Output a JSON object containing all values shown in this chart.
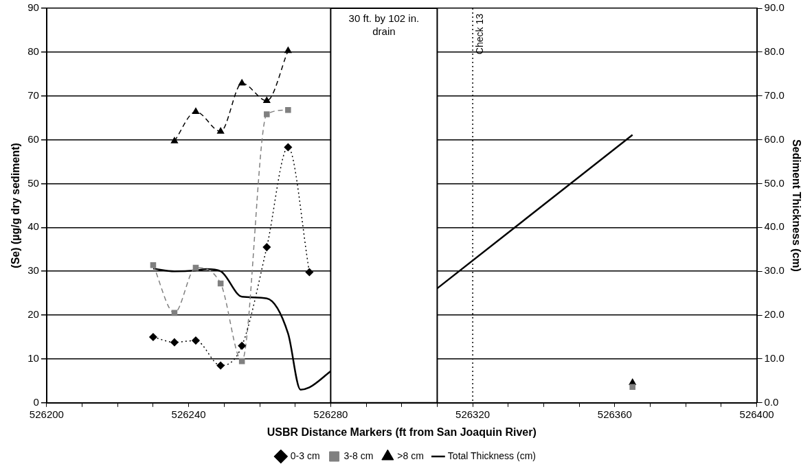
{
  "chart_data": {
    "type": "line",
    "xlabel": "USBR Distance Markers (ft from San Joaquin River)",
    "ylabel": "(Se) (µg/g dry sediment)",
    "y2label": "Sediment Thickness (cm)",
    "xlim": [
      526200,
      526400
    ],
    "xticks": [
      526200,
      {
        "value": 526210,
        "label": null
      },
      {
        "value": 526220,
        "label": null
      },
      {
        "value": 526230,
        "label": null
      },
      526240,
      {
        "value": 526250,
        "label": null
      },
      {
        "value": 526260,
        "label": null
      },
      {
        "value": 526270,
        "label": null
      },
      526280,
      {
        "value": 526290,
        "label": null
      },
      {
        "value": 526300,
        "label": null
      },
      {
        "value": 526310,
        "label": null
      },
      526320,
      {
        "value": 526330,
        "label": null
      },
      {
        "value": 526340,
        "label": null
      },
      {
        "value": 526350,
        "label": null
      },
      526360,
      {
        "value": 526370,
        "label": null
      },
      {
        "value": 526380,
        "label": null
      },
      {
        "value": 526390,
        "label": null
      },
      526400
    ],
    "ylim": [
      0,
      90
    ],
    "yticks": [
      0,
      10,
      20,
      30,
      40,
      50,
      60,
      70,
      80,
      90
    ],
    "y2lim": [
      0,
      90
    ],
    "y2ticks": [
      {
        "value": 0,
        "label": "0.0"
      },
      {
        "value": 10,
        "label": "10.0"
      },
      {
        "value": 20,
        "label": "20.0"
      },
      {
        "value": 30,
        "label": "30.0"
      },
      {
        "value": 40,
        "label": "40.0"
      },
      {
        "value": 50,
        "label": "50.0"
      },
      {
        "value": 60,
        "label": "60.0"
      },
      {
        "value": 70,
        "label": "70.0"
      },
      {
        "value": 80,
        "label": "80.0"
      },
      {
        "value": 90,
        "label": "90.0"
      }
    ],
    "grid": "y",
    "legend": "bottom",
    "series": [
      {
        "name": "0-3 cm",
        "color": "#000000",
        "marker": "diamond",
        "line_style": "dotted",
        "x": [
          526230,
          526236,
          526242,
          526249,
          526255,
          526262,
          526268,
          526274
        ],
        "values": [
          15.0,
          13.8,
          14.2,
          8.5,
          13.0,
          35.5,
          58.3,
          29.8
        ]
      },
      {
        "name": "3-8 cm",
        "color": "#808080",
        "marker": "square",
        "line_style": "dashed",
        "x": [
          526230,
          526236,
          526242,
          526249,
          526255,
          526262,
          526268,
          526300,
          526365
        ],
        "values": [
          31.4,
          20.5,
          30.8,
          27.2,
          9.5,
          65.8,
          66.8,
          null,
          3.6
        ]
      },
      {
        "name": ">8 cm",
        "color": "#000000",
        "marker": "triangle",
        "line_style": "dashed",
        "x": [
          526236,
          526242,
          526249,
          526255,
          526262,
          526268,
          526300,
          526365
        ],
        "values": [
          59.7,
          66.4,
          61.9,
          72.9,
          68.9,
          80.3,
          null,
          4.6
        ]
      },
      {
        "name": "Total Thickness (cm)",
        "color": "#000000",
        "marker": "none",
        "line_style": "solid",
        "axis": "y2",
        "x": [
          526230,
          526236,
          526242,
          526245,
          526249,
          526255,
          526262,
          526268,
          526271.5,
          526274,
          526280,
          526295,
          526310,
          526365
        ],
        "values": [
          30.6,
          30.0,
          30.2,
          30.5,
          30.0,
          24.2,
          23.8,
          15.8,
          3.0,
          3.5,
          7.2,
          null,
          26.1,
          61.1
        ]
      }
    ],
    "bands": [
      {
        "axis": "x",
        "from": 526280,
        "to": 526310,
        "label": "30 ft. by 102 in. drain",
        "color": "#ffffff"
      }
    ],
    "ref_lines": [
      {
        "axis": "x",
        "value": 526320,
        "label": "Check 13",
        "line_style": "dotted",
        "color": "#000000"
      }
    ]
  }
}
